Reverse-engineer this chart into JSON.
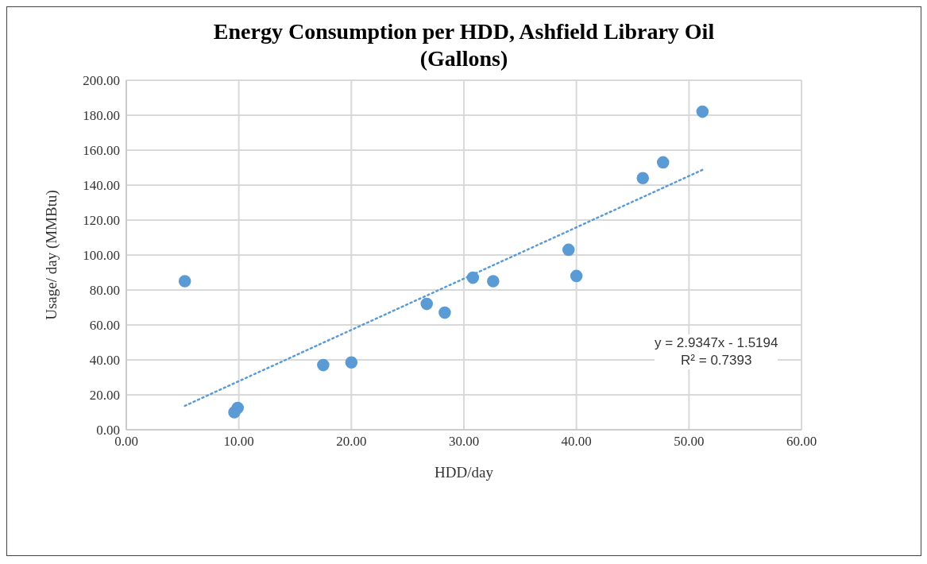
{
  "chart_data": {
    "type": "scatter",
    "title": "Energy Consumption per HDD, Ashfield Library Oil (Gallons)",
    "xlabel": "HDD/day",
    "ylabel": "Usage/ day (MMBtu)",
    "annotations": [
      "y = 2.9347x - 1.5194",
      "R² = 0.7393"
    ],
    "series": [
      {
        "color": "#5b9bd5",
        "marker": "circle",
        "x": [
          5.2,
          9.6,
          9.9,
          17.5,
          20.0,
          26.7,
          28.3,
          30.8,
          32.6,
          39.3,
          40.0,
          45.9,
          47.7,
          51.2
        ],
        "values": [
          85,
          10,
          12.5,
          37,
          38.5,
          72,
          67,
          87,
          85,
          103,
          88,
          144,
          153,
          182
        ]
      },
      {
        "type": "line",
        "color": "#5b9bd5",
        "marker": "none",
        "line_style": "dotted",
        "x": [
          5.2,
          51.2
        ],
        "values": [
          13.7,
          148.7
        ]
      }
    ],
    "xlim": [
      0,
      60
    ],
    "xticks": [
      {
        "value": 0,
        "label": "0.00"
      },
      {
        "value": 10,
        "label": "10.00"
      },
      {
        "value": 20,
        "label": "20.00"
      },
      {
        "value": 30,
        "label": "30.00"
      },
      {
        "value": 40,
        "label": "40.00"
      },
      {
        "value": 50,
        "label": "50.00"
      },
      {
        "value": 60,
        "label": "60.00"
      }
    ],
    "ylim": [
      0,
      200
    ],
    "yticks": [
      {
        "value": 0,
        "label": "0.00"
      },
      {
        "value": 20,
        "label": "20.00"
      },
      {
        "value": 40,
        "label": "40.00"
      },
      {
        "value": 60,
        "label": "60.00"
      },
      {
        "value": 80,
        "label": "80.00"
      },
      {
        "value": 100,
        "label": "100.00"
      },
      {
        "value": 120,
        "label": "120.00"
      },
      {
        "value": 140,
        "label": "140.00"
      },
      {
        "value": 160,
        "label": "160.00"
      },
      {
        "value": 180,
        "label": "180.00"
      },
      {
        "value": 200,
        "label": "200.00"
      }
    ],
    "grid": true
  }
}
